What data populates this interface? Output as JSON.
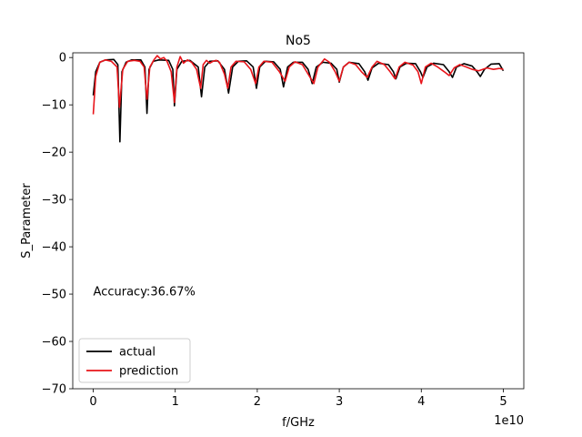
{
  "chart_data": {
    "type": "line",
    "title": "No5",
    "xlabel": "f/GHz",
    "ylabel": "S_Parameter",
    "x_offset_label": "1e10",
    "xlim": [
      -0.25,
      5.25
    ],
    "ylim": [
      -70,
      1
    ],
    "x_ticks": [
      0,
      1,
      2,
      3,
      4,
      5
    ],
    "x_tick_labels": [
      "0",
      "1",
      "2",
      "3",
      "4",
      "5"
    ],
    "y_ticks": [
      0,
      -10,
      -20,
      -30,
      -40,
      -50,
      -60,
      -70
    ],
    "y_tick_labels": [
      "0",
      "−10",
      "−20",
      "−30",
      "−40",
      "−50",
      "−60",
      "−70"
    ],
    "annotation": {
      "text": "Accuracy:36.67%",
      "x": 0.0,
      "y": -49.5
    },
    "legend": {
      "placement": "lower-left"
    },
    "series": [
      {
        "name": "actual",
        "color": "#000000",
        "points": [
          [
            0.0,
            -8.0
          ],
          [
            0.03,
            -3.0
          ],
          [
            0.08,
            -1.0
          ],
          [
            0.15,
            -0.5
          ],
          [
            0.25,
            -0.4
          ],
          [
            0.3,
            -1.5
          ],
          [
            0.325,
            -17.8
          ],
          [
            0.35,
            -3.0
          ],
          [
            0.4,
            -1.0
          ],
          [
            0.47,
            -0.5
          ],
          [
            0.58,
            -0.5
          ],
          [
            0.63,
            -2.0
          ],
          [
            0.655,
            -11.8
          ],
          [
            0.68,
            -2.5
          ],
          [
            0.73,
            -0.8
          ],
          [
            0.8,
            -0.5
          ],
          [
            0.92,
            -0.6
          ],
          [
            0.97,
            -2.5
          ],
          [
            0.99,
            -10.2
          ],
          [
            1.02,
            -2.5
          ],
          [
            1.08,
            -0.8
          ],
          [
            1.18,
            -0.6
          ],
          [
            1.28,
            -2.0
          ],
          [
            1.32,
            -8.3
          ],
          [
            1.36,
            -2.0
          ],
          [
            1.42,
            -0.8
          ],
          [
            1.52,
            -0.7
          ],
          [
            1.6,
            -2.5
          ],
          [
            1.65,
            -7.5
          ],
          [
            1.7,
            -2.0
          ],
          [
            1.77,
            -0.8
          ],
          [
            1.87,
            -0.7
          ],
          [
            1.95,
            -2.0
          ],
          [
            1.99,
            -6.5
          ],
          [
            2.03,
            -2.0
          ],
          [
            2.1,
            -0.8
          ],
          [
            2.2,
            -0.9
          ],
          [
            2.28,
            -2.5
          ],
          [
            2.32,
            -6.2
          ],
          [
            2.37,
            -2.0
          ],
          [
            2.44,
            -1.0
          ],
          [
            2.55,
            -1.0
          ],
          [
            2.62,
            -2.5
          ],
          [
            2.67,
            -5.5
          ],
          [
            2.72,
            -2.0
          ],
          [
            2.8,
            -1.0
          ],
          [
            2.9,
            -1.2
          ],
          [
            2.97,
            -2.5
          ],
          [
            3.0,
            -5.2
          ],
          [
            3.05,
            -2.0
          ],
          [
            3.12,
            -1.0
          ],
          [
            3.24,
            -1.3
          ],
          [
            3.31,
            -3.0
          ],
          [
            3.35,
            -4.8
          ],
          [
            3.4,
            -2.2
          ],
          [
            3.48,
            -1.2
          ],
          [
            3.6,
            -1.5
          ],
          [
            3.66,
            -3.0
          ],
          [
            3.69,
            -4.5
          ],
          [
            3.74,
            -2.0
          ],
          [
            3.82,
            -1.2
          ],
          [
            3.93,
            -1.3
          ],
          [
            3.99,
            -3.0
          ],
          [
            4.02,
            -4.2
          ],
          [
            4.07,
            -2.0
          ],
          [
            4.15,
            -1.2
          ],
          [
            4.27,
            -1.5
          ],
          [
            4.34,
            -3.0
          ],
          [
            4.38,
            -4.2
          ],
          [
            4.43,
            -2.0
          ],
          [
            4.52,
            -1.3
          ],
          [
            4.62,
            -1.8
          ],
          [
            4.68,
            -3.0
          ],
          [
            4.72,
            -4.0
          ],
          [
            4.77,
            -2.5
          ],
          [
            4.85,
            -1.4
          ],
          [
            4.95,
            -1.3
          ],
          [
            5.0,
            -2.8
          ]
        ]
      },
      {
        "name": "prediction",
        "color": "#e8141a",
        "points": [
          [
            0.0,
            -12.0
          ],
          [
            0.03,
            -4.0
          ],
          [
            0.08,
            -1.0
          ],
          [
            0.15,
            -0.5
          ],
          [
            0.22,
            -0.8
          ],
          [
            0.29,
            -2.0
          ],
          [
            0.32,
            -10.5
          ],
          [
            0.36,
            -2.5
          ],
          [
            0.42,
            -0.8
          ],
          [
            0.5,
            -0.6
          ],
          [
            0.57,
            -0.8
          ],
          [
            0.62,
            -2.0
          ],
          [
            0.655,
            -8.8
          ],
          [
            0.69,
            -2.0
          ],
          [
            0.74,
            -0.5
          ],
          [
            0.78,
            0.4
          ],
          [
            0.82,
            -0.3
          ],
          [
            0.86,
            0.0
          ],
          [
            0.9,
            -0.8
          ],
          [
            0.95,
            -3.0
          ],
          [
            0.99,
            -9.5
          ],
          [
            1.02,
            -2.0
          ],
          [
            1.06,
            0.2
          ],
          [
            1.1,
            -1.2
          ],
          [
            1.15,
            -0.5
          ],
          [
            1.2,
            -1.0
          ],
          [
            1.26,
            -2.5
          ],
          [
            1.31,
            -6.5
          ],
          [
            1.34,
            -1.5
          ],
          [
            1.38,
            -0.6
          ],
          [
            1.42,
            -1.2
          ],
          [
            1.46,
            -0.8
          ],
          [
            1.5,
            -0.6
          ],
          [
            1.54,
            -1.0
          ],
          [
            1.6,
            -3.5
          ],
          [
            1.64,
            -6.5
          ],
          [
            1.68,
            -2.0
          ],
          [
            1.74,
            -0.8
          ],
          [
            1.84,
            -0.9
          ],
          [
            1.92,
            -2.5
          ],
          [
            1.98,
            -5.5
          ],
          [
            2.02,
            -2.0
          ],
          [
            2.08,
            -0.8
          ],
          [
            2.18,
            -1.0
          ],
          [
            2.27,
            -3.0
          ],
          [
            2.34,
            -5.0
          ],
          [
            2.39,
            -2.0
          ],
          [
            2.46,
            -0.9
          ],
          [
            2.55,
            -1.5
          ],
          [
            2.62,
            -3.5
          ],
          [
            2.69,
            -5.5
          ],
          [
            2.74,
            -2.0
          ],
          [
            2.82,
            -0.3
          ],
          [
            2.88,
            -1.0
          ],
          [
            2.95,
            -3.0
          ],
          [
            3.0,
            -5.0
          ],
          [
            3.05,
            -2.0
          ],
          [
            3.12,
            -1.0
          ],
          [
            3.2,
            -1.5
          ],
          [
            3.27,
            -3.0
          ],
          [
            3.34,
            -4.2
          ],
          [
            3.4,
            -2.0
          ],
          [
            3.46,
            -0.8
          ],
          [
            3.55,
            -1.5
          ],
          [
            3.62,
            -3.0
          ],
          [
            3.68,
            -4.5
          ],
          [
            3.73,
            -2.0
          ],
          [
            3.8,
            -1.0
          ],
          [
            3.9,
            -1.6
          ],
          [
            3.96,
            -3.0
          ],
          [
            4.0,
            -5.5
          ],
          [
            4.05,
            -2.0
          ],
          [
            4.12,
            -1.2
          ],
          [
            4.2,
            -2.0
          ],
          [
            4.28,
            -3.0
          ],
          [
            4.34,
            -3.8
          ],
          [
            4.4,
            -2.2
          ],
          [
            4.47,
            -1.5
          ],
          [
            4.55,
            -2.0
          ],
          [
            4.62,
            -2.5
          ],
          [
            4.7,
            -2.8
          ],
          [
            4.8,
            -2.2
          ],
          [
            4.88,
            -2.5
          ],
          [
            4.95,
            -2.3
          ],
          [
            5.0,
            -2.5
          ]
        ]
      }
    ]
  }
}
